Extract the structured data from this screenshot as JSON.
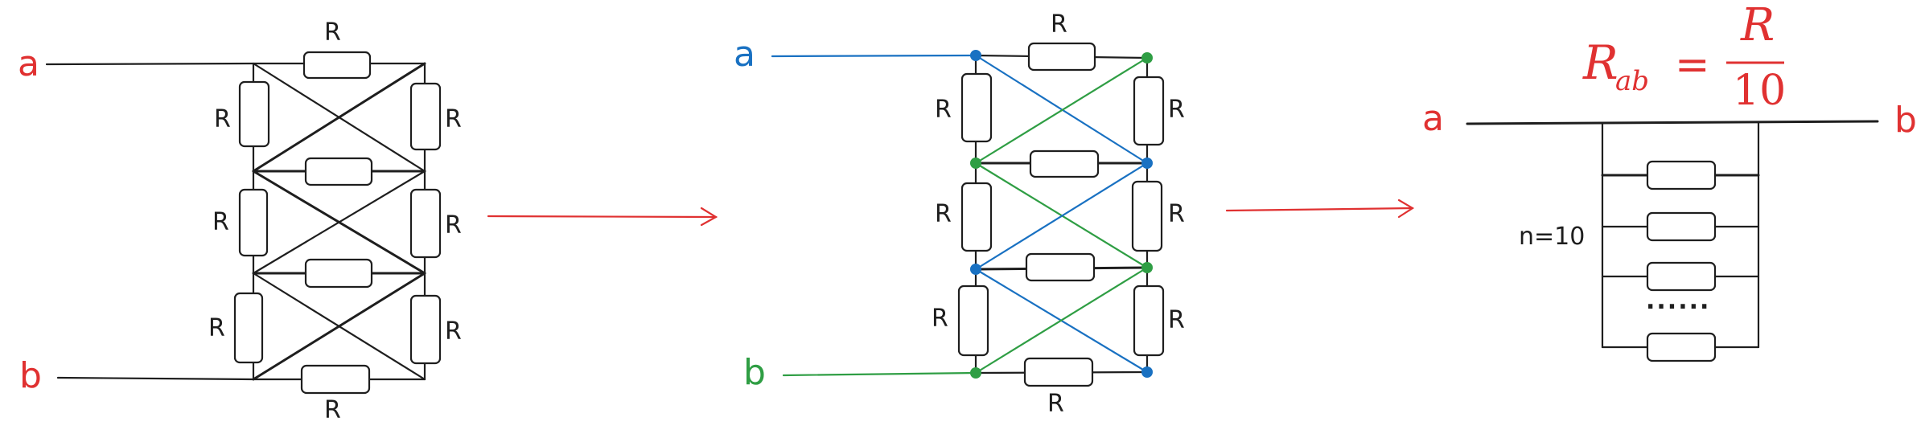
{
  "colors": {
    "ink": "#1e1e1e",
    "red": "#e03131",
    "blue": "#1971c2",
    "green": "#2f9e44"
  },
  "panel1": {
    "terminal_a": "a",
    "terminal_b": "b",
    "resistor_label": "R"
  },
  "panel2": {
    "terminal_a": "a",
    "terminal_b": "b",
    "resistor_label": "R"
  },
  "panel3": {
    "terminal_a": "a",
    "terminal_b": "b",
    "formula_lhs": "R",
    "formula_lhs_sub": "ab",
    "formula_eq": "=",
    "formula_num": "R",
    "formula_den": "10",
    "count_label": "n=10",
    "ellipsis": "......"
  }
}
